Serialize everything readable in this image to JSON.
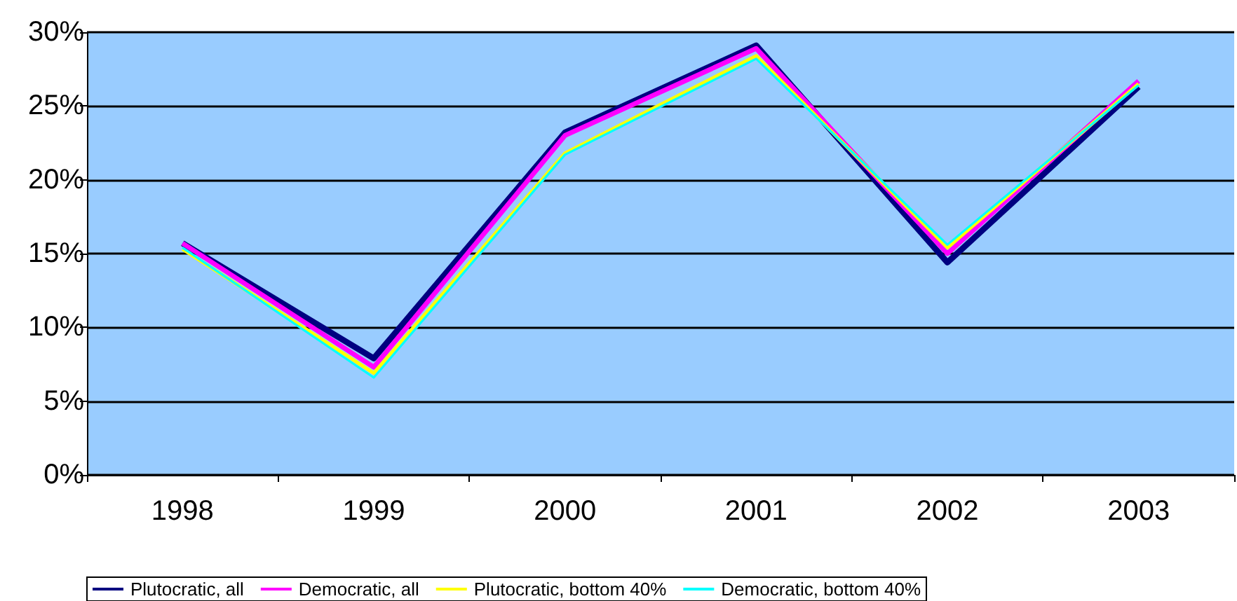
{
  "chart_data": {
    "type": "line",
    "categories": [
      "1998",
      "1999",
      "2000",
      "2001",
      "2002",
      "2003"
    ],
    "series": [
      {
        "name": "Plutocratic, all",
        "color": "#000080",
        "values": [
          15.7,
          7.9,
          23.2,
          29.1,
          14.4,
          26.3
        ]
      },
      {
        "name": "Democratic, all",
        "color": "#ff00ff",
        "values": [
          15.7,
          7.3,
          23.0,
          28.9,
          15.0,
          26.7
        ]
      },
      {
        "name": "Plutocratic, bottom 40%",
        "color": "#ffff00",
        "values": [
          15.3,
          6.9,
          21.8,
          28.4,
          15.4,
          26.5
        ]
      },
      {
        "name": "Democratic, bottom 40%",
        "color": "#00ffff",
        "values": [
          15.4,
          6.6,
          21.7,
          28.2,
          15.6,
          26.4
        ]
      }
    ],
    "ylim": [
      0,
      30
    ],
    "yticks": [
      {
        "value": 0,
        "label": "0%"
      },
      {
        "value": 5,
        "label": "5%"
      },
      {
        "value": 10,
        "label": "10%"
      },
      {
        "value": 15,
        "label": "15%"
      },
      {
        "value": 20,
        "label": "20%"
      },
      {
        "value": 25,
        "label": "25%"
      },
      {
        "value": 30,
        "label": "30%"
      }
    ],
    "grid": "y",
    "legend": "bottom",
    "marker": "none",
    "line_style": "solid"
  }
}
